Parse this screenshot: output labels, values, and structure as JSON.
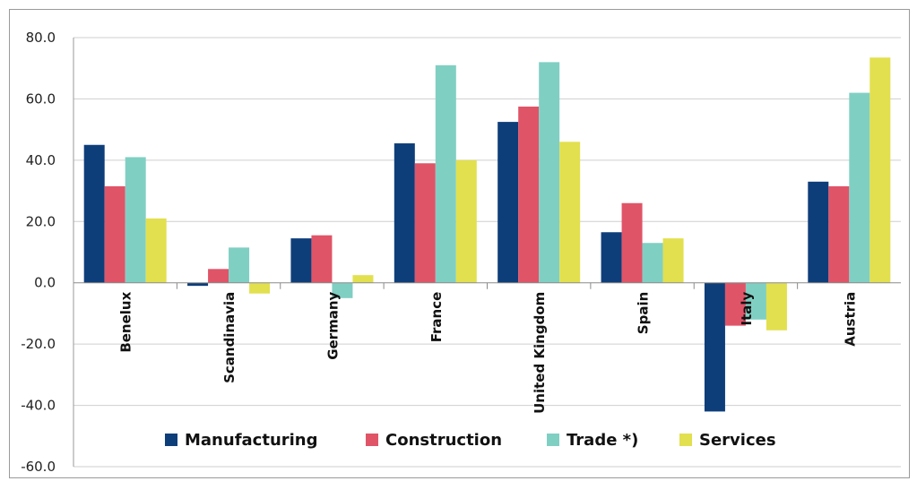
{
  "chart_data": {
    "type": "bar",
    "categories": [
      "Benelux",
      "Scandinavia",
      "Germany",
      "France",
      "United Kingdom",
      "Spain",
      "Italy",
      "Austria"
    ],
    "series": [
      {
        "name": "Manufacturing",
        "color": "#0e3e7a",
        "values": [
          45.0,
          -1.0,
          14.5,
          45.5,
          52.5,
          16.5,
          -42.0,
          33.0
        ]
      },
      {
        "name": "Construction",
        "color": "#e05468",
        "values": [
          31.5,
          4.5,
          15.5,
          39.0,
          57.5,
          26.0,
          -14.0,
          31.5
        ]
      },
      {
        "name": "Trade *)",
        "color": "#80cfc3",
        "values": [
          41.0,
          11.5,
          -5.0,
          71.0,
          72.0,
          13.0,
          -12.0,
          62.0
        ]
      },
      {
        "name": "Services",
        "color": "#e2e04e",
        "values": [
          21.0,
          -3.5,
          2.5,
          40.0,
          46.0,
          14.5,
          -15.5,
          73.5
        ]
      }
    ],
    "ylim": [
      -60,
      80
    ],
    "yticks": [
      "80.0",
      "60.0",
      "40.0",
      "20.0",
      "0.0",
      "-20.0",
      "-40.0",
      "-60.0"
    ],
    "title": "",
    "xlabel": "",
    "ylabel": "",
    "grid": true,
    "legend_position": "bottom-center"
  }
}
